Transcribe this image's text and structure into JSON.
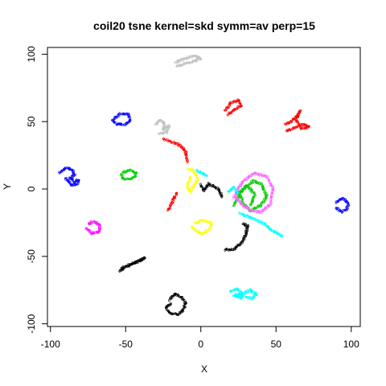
{
  "chart_data": {
    "type": "scatter",
    "title": "coil20 tsne kernel=skd symm=av perp=15",
    "xlabel": "X",
    "ylabel": "Y",
    "xlim": [
      -102,
      106
    ],
    "ylim": [
      -102,
      105
    ],
    "xticks": [
      -100,
      -50,
      0,
      50,
      100
    ],
    "yticks": [
      -100,
      -50,
      0,
      50,
      100
    ],
    "xtick_labels": [
      "-100",
      "-50",
      "0",
      "50",
      "100"
    ],
    "ytick_labels": [
      "-100",
      "-50",
      "0",
      "50",
      "100"
    ],
    "grid": false,
    "legend": "none",
    "marker": "open circle",
    "series": [
      {
        "color": "#0000ff",
        "x": [
          -58,
          -53,
          -48,
          -47,
          -50,
          -56,
          -59
        ],
        "y": [
          52,
          56,
          55,
          51,
          48,
          48,
          51
        ]
      },
      {
        "color": "#0000ff",
        "x": [
          -94,
          -89,
          -85,
          -84,
          -87,
          -84,
          -81,
          -82,
          -86,
          -90
        ],
        "y": [
          12,
          16,
          14,
          10,
          8,
          5,
          7,
          4,
          3,
          8
        ]
      },
      {
        "color": "#0000ff",
        "x": [
          90,
          94,
          98,
          97,
          94,
          90
        ],
        "y": [
          -10,
          -7,
          -10,
          -15,
          -17,
          -14
        ]
      },
      {
        "color": "#00cc00",
        "x": [
          -52,
          -47,
          -43,
          -44,
          -48,
          -52,
          -53
        ],
        "y": [
          12,
          14,
          12,
          9,
          7,
          8,
          11
        ]
      },
      {
        "color": "#00cc00",
        "x": [
          22,
          28,
          35,
          40,
          44,
          40,
          33,
          28,
          25,
          31,
          36,
          33
        ],
        "y": [
          -12,
          0,
          6,
          4,
          -5,
          -12,
          -16,
          -10,
          -3,
          2,
          -4,
          -12
        ]
      },
      {
        "color": "#ff66ff",
        "x": [
          22,
          28,
          36,
          44,
          48,
          46,
          40,
          33,
          27,
          23
        ],
        "y": [
          -6,
          6,
          12,
          9,
          0,
          -12,
          -17,
          -16,
          -11,
          -6
        ]
      },
      {
        "color": "#ff00ff",
        "x": [
          -75,
          -71,
          -67,
          -68,
          -73,
          -76
        ],
        "y": [
          -26,
          -24,
          -27,
          -32,
          -33,
          -29
        ]
      },
      {
        "color": "#ff0000",
        "x": [
          16,
          20,
          25,
          27,
          24,
          20,
          18
        ],
        "y": [
          58,
          64,
          66,
          62,
          60,
          57,
          55
        ]
      },
      {
        "color": "#ff0000",
        "x": [
          56,
          60,
          64,
          66,
          63,
          67,
          72,
          68,
          62,
          57
        ],
        "y": [
          48,
          50,
          54,
          58,
          51,
          45,
          46,
          48,
          45,
          43
        ]
      },
      {
        "color": "#ff0000",
        "x": [
          -25,
          -19,
          -13,
          -10,
          -9
        ],
        "y": [
          37,
          35,
          32,
          27,
          20
        ]
      },
      {
        "color": "#ff0000",
        "x": [
          -22,
          -19,
          -17,
          -16
        ],
        "y": [
          -16,
          -10,
          -5,
          -3
        ]
      },
      {
        "color": "#c0c0c0",
        "x": [
          -17,
          -10,
          -4,
          0,
          -4,
          -11,
          -16
        ],
        "y": [
          94,
          97,
          99,
          97,
          95,
          93,
          91
        ]
      },
      {
        "color": "#c0c0c0",
        "x": [
          -30,
          -27,
          -24,
          -25,
          -21,
          -23,
          -28
        ],
        "y": [
          48,
          51,
          49,
          44,
          47,
          42,
          41
        ]
      },
      {
        "color": "#ffff00",
        "x": [
          -8,
          -4,
          -2,
          -5,
          -7,
          -9,
          -7
        ],
        "y": [
          15,
          13,
          7,
          2,
          -2,
          2,
          9
        ]
      },
      {
        "color": "#ffff00",
        "x": [
          -4,
          2,
          7,
          6,
          1,
          -4,
          -6
        ],
        "y": [
          -25,
          -23,
          -25,
          -30,
          -33,
          -31,
          -28
        ]
      },
      {
        "color": "#000000",
        "x": [
          -53,
          -47,
          -40,
          -37,
          -43,
          -50,
          -54
        ],
        "y": [
          -59,
          -56,
          -53,
          -51,
          -54,
          -58,
          -61
        ]
      },
      {
        "color": "#000000",
        "x": [
          16,
          22,
          27,
          30,
          31,
          28
        ],
        "y": [
          -45,
          -45,
          -40,
          -34,
          -27,
          -26
        ]
      },
      {
        "color": "#000000",
        "x": [
          -21,
          -17,
          -12,
          -10,
          -12,
          -15,
          -21,
          -23,
          -20
        ],
        "y": [
          -82,
          -78,
          -81,
          -85,
          -90,
          -93,
          -92,
          -88,
          -85
        ]
      },
      {
        "color": "#000000",
        "x": [
          0,
          2,
          5,
          12,
          14
        ],
        "y": [
          3,
          -1,
          4,
          0,
          -6
        ]
      },
      {
        "color": "#00ffff",
        "x": [
          20,
          24,
          28,
          27,
          22,
          29,
          33,
          37,
          34,
          30
        ],
        "y": [
          -76,
          -74,
          -78,
          -81,
          -79,
          -77,
          -75,
          -78,
          -81,
          -80
        ]
      },
      {
        "color": "#00ffff",
        "x": [
          26,
          35,
          42,
          48,
          54
        ],
        "y": [
          -18,
          -22,
          -26,
          -31,
          -35
        ]
      },
      {
        "color": "#00ffff",
        "x": [
          18,
          22,
          25
        ],
        "y": [
          -2,
          1,
          -3
        ]
      },
      {
        "color": "#00ffff",
        "x": [
          -3,
          1,
          4
        ],
        "y": [
          14,
          12,
          10
        ]
      }
    ]
  }
}
